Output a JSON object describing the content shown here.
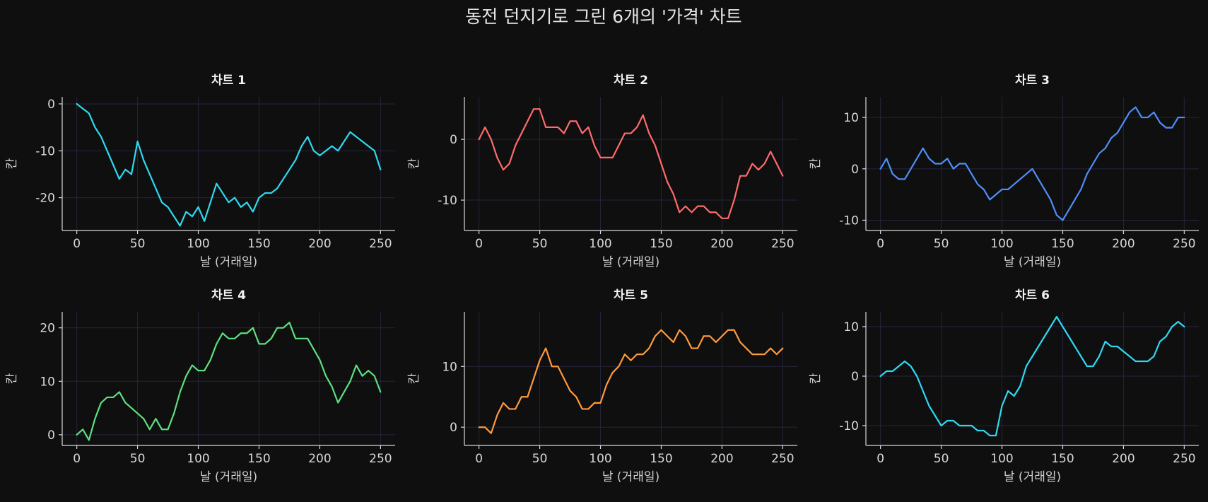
{
  "figure": {
    "title": "동전 던지기로 그린 6개의 '가격' 차트",
    "background": "#0f0f10"
  },
  "chart_data": [
    {
      "type": "line",
      "title": "차트 1",
      "xlabel": "날 (거래일)",
      "ylabel": "칸",
      "color": "#2fd9f0",
      "grid": true,
      "xlim": [
        -12,
        262
      ],
      "ylim": [
        -27,
        1.5
      ],
      "xticks": [
        0,
        50,
        100,
        150,
        200,
        250
      ],
      "yticks": [
        0,
        -10,
        -20
      ],
      "x": [
        0,
        5,
        10,
        15,
        20,
        25,
        30,
        35,
        40,
        45,
        50,
        55,
        60,
        65,
        70,
        75,
        80,
        85,
        90,
        95,
        100,
        105,
        110,
        115,
        120,
        125,
        130,
        135,
        140,
        145,
        150,
        155,
        160,
        165,
        170,
        175,
        180,
        185,
        190,
        195,
        200,
        205,
        210,
        215,
        220,
        225,
        230,
        235,
        240,
        245,
        250
      ],
      "values": [
        0,
        -1,
        -2,
        -5,
        -7,
        -10,
        -13,
        -16,
        -14,
        -15,
        -8,
        -12,
        -15,
        -18,
        -21,
        -22,
        -24,
        -26,
        -23,
        -24,
        -22,
        -25,
        -21,
        -17,
        -19,
        -21,
        -20,
        -22,
        -21,
        -23,
        -20,
        -19,
        -19,
        -18,
        -16,
        -14,
        -12,
        -9,
        -7,
        -10,
        -11,
        -10,
        -9,
        -10,
        -8,
        -6,
        -7,
        -8,
        -9,
        -10,
        -14
      ]
    },
    {
      "type": "line",
      "title": "차트 2",
      "xlabel": "날 (거래일)",
      "ylabel": "칸",
      "color": "#ff6b6b",
      "grid": true,
      "xlim": [
        -12,
        262
      ],
      "ylim": [
        -15,
        7
      ],
      "xticks": [
        0,
        50,
        100,
        150,
        200,
        250
      ],
      "yticks": [
        0,
        -10
      ],
      "x": [
        0,
        5,
        10,
        15,
        20,
        25,
        30,
        35,
        40,
        45,
        50,
        55,
        60,
        65,
        70,
        75,
        80,
        85,
        90,
        95,
        100,
        105,
        110,
        115,
        120,
        125,
        130,
        135,
        140,
        145,
        150,
        155,
        160,
        165,
        170,
        175,
        180,
        185,
        190,
        195,
        200,
        205,
        210,
        215,
        220,
        225,
        230,
        235,
        240,
        245,
        250
      ],
      "values": [
        0,
        2,
        0,
        -3,
        -5,
        -4,
        -1,
        1,
        3,
        5,
        5,
        2,
        2,
        2,
        1,
        3,
        3,
        1,
        2,
        -1,
        -3,
        -3,
        -3,
        -1,
        1,
        1,
        2,
        4,
        1,
        -1,
        -4,
        -7,
        -9,
        -12,
        -11,
        -12,
        -11,
        -11,
        -12,
        -12,
        -13,
        -13,
        -10,
        -6,
        -6,
        -4,
        -5,
        -4,
        -2,
        -4,
        -6
      ]
    },
    {
      "type": "line",
      "title": "차트 3",
      "xlabel": "날 (거래일)",
      "ylabel": "칸",
      "color": "#4f8ef7",
      "grid": true,
      "xlim": [
        -12,
        262
      ],
      "ylim": [
        -12,
        14
      ],
      "xticks": [
        0,
        50,
        100,
        150,
        200,
        250
      ],
      "yticks": [
        10,
        0,
        -10
      ],
      "x": [
        0,
        5,
        10,
        15,
        20,
        25,
        30,
        35,
        40,
        45,
        50,
        55,
        60,
        65,
        70,
        75,
        80,
        85,
        90,
        95,
        100,
        105,
        110,
        115,
        120,
        125,
        130,
        135,
        140,
        145,
        150,
        155,
        160,
        165,
        170,
        175,
        180,
        185,
        190,
        195,
        200,
        205,
        210,
        215,
        220,
        225,
        230,
        235,
        240,
        245,
        250
      ],
      "values": [
        0,
        2,
        -1,
        -2,
        -2,
        0,
        2,
        4,
        2,
        1,
        1,
        2,
        0,
        1,
        1,
        -1,
        -3,
        -4,
        -6,
        -5,
        -4,
        -4,
        -3,
        -2,
        -1,
        0,
        -2,
        -4,
        -6,
        -9,
        -10,
        -8,
        -6,
        -4,
        -1,
        1,
        3,
        4,
        6,
        7,
        9,
        11,
        12,
        10,
        10,
        11,
        9,
        8,
        8,
        10,
        10
      ]
    },
    {
      "type": "line",
      "title": "차트 4",
      "xlabel": "날 (거래일)",
      "ylabel": "칸",
      "color": "#5ee07f",
      "grid": true,
      "xlim": [
        -12,
        262
      ],
      "ylim": [
        -2,
        23
      ],
      "xticks": [
        0,
        50,
        100,
        150,
        200,
        250
      ],
      "yticks": [
        0,
        10,
        20
      ],
      "x": [
        0,
        5,
        10,
        15,
        20,
        25,
        30,
        35,
        40,
        45,
        50,
        55,
        60,
        65,
        70,
        75,
        80,
        85,
        90,
        95,
        100,
        105,
        110,
        115,
        120,
        125,
        130,
        135,
        140,
        145,
        150,
        155,
        160,
        165,
        170,
        175,
        180,
        185,
        190,
        195,
        200,
        205,
        210,
        215,
        220,
        225,
        230,
        235,
        240,
        245,
        250
      ],
      "values": [
        0,
        1,
        -1,
        3,
        6,
        7,
        7,
        8,
        6,
        5,
        4,
        3,
        1,
        3,
        1,
        1,
        4,
        8,
        11,
        13,
        12,
        12,
        14,
        17,
        19,
        18,
        18,
        19,
        19,
        20,
        17,
        17,
        18,
        20,
        20,
        21,
        18,
        18,
        18,
        16,
        14,
        11,
        9,
        6,
        8,
        10,
        13,
        11,
        12,
        11,
        8
      ]
    },
    {
      "type": "line",
      "title": "차트 5",
      "xlabel": "날 (거래일)",
      "ylabel": "칸",
      "color": "#ff9a3c",
      "grid": true,
      "xlim": [
        -12,
        262
      ],
      "ylim": [
        -3,
        19
      ],
      "xticks": [
        0,
        50,
        100,
        150,
        200,
        250
      ],
      "yticks": [
        0,
        10
      ],
      "x": [
        0,
        5,
        10,
        15,
        20,
        25,
        30,
        35,
        40,
        45,
        50,
        55,
        60,
        65,
        70,
        75,
        80,
        85,
        90,
        95,
        100,
        105,
        110,
        115,
        120,
        125,
        130,
        135,
        140,
        145,
        150,
        155,
        160,
        165,
        170,
        175,
        180,
        185,
        190,
        195,
        200,
        205,
        210,
        215,
        220,
        225,
        230,
        235,
        240,
        245,
        250
      ],
      "values": [
        0,
        0,
        -1,
        2,
        4,
        3,
        3,
        5,
        5,
        8,
        11,
        13,
        10,
        10,
        8,
        6,
        5,
        3,
        3,
        4,
        4,
        7,
        9,
        10,
        12,
        11,
        12,
        12,
        13,
        15,
        16,
        15,
        14,
        16,
        15,
        13,
        13,
        15,
        15,
        14,
        15,
        16,
        16,
        14,
        13,
        12,
        12,
        12,
        13,
        12,
        13
      ]
    },
    {
      "type": "line",
      "title": "차트 6",
      "xlabel": "날 (거래일)",
      "ylabel": "칸",
      "color": "#2fd9f0",
      "grid": true,
      "xlim": [
        -12,
        262
      ],
      "ylim": [
        -14,
        13
      ],
      "xticks": [
        0,
        50,
        100,
        150,
        200,
        250
      ],
      "yticks": [
        10,
        0,
        -10
      ],
      "x": [
        0,
        5,
        10,
        15,
        20,
        25,
        30,
        35,
        40,
        45,
        50,
        55,
        60,
        65,
        70,
        75,
        80,
        85,
        90,
        95,
        100,
        105,
        110,
        115,
        120,
        125,
        130,
        135,
        140,
        145,
        150,
        155,
        160,
        165,
        170,
        175,
        180,
        185,
        190,
        195,
        200,
        205,
        210,
        215,
        220,
        225,
        230,
        235,
        240,
        245,
        250
      ],
      "values": [
        0,
        1,
        1,
        2,
        3,
        2,
        0,
        -3,
        -6,
        -8,
        -10,
        -9,
        -9,
        -10,
        -10,
        -10,
        -11,
        -11,
        -12,
        -12,
        -6,
        -3,
        -4,
        -2,
        2,
        4,
        6,
        8,
        10,
        12,
        10,
        8,
        6,
        4,
        2,
        2,
        4,
        7,
        6,
        6,
        5,
        4,
        3,
        3,
        3,
        4,
        7,
        8,
        10,
        11,
        10
      ]
    }
  ]
}
